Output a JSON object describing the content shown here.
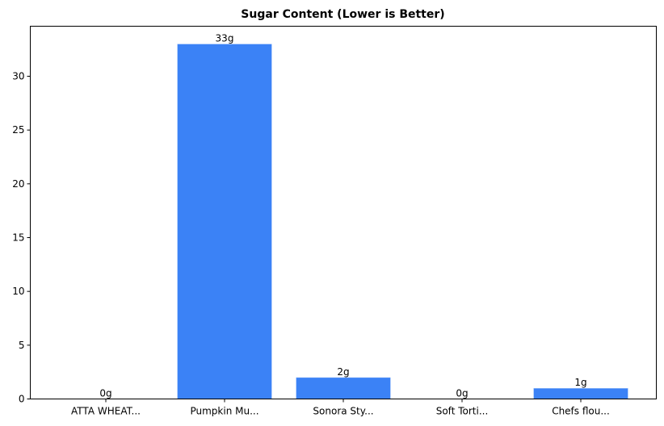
{
  "chart_data": {
    "type": "bar",
    "title": "Sugar Content (Lower is Better)",
    "xlabel": "",
    "ylabel": "",
    "categories": [
      "ATTA WHEAT...",
      "Pumpkin Mu...",
      "Sonora Sty...",
      "Soft Torti...",
      "Chefs flou..."
    ],
    "values": [
      0,
      33,
      2,
      0,
      1
    ],
    "value_labels": [
      "0g",
      "33g",
      "2g",
      "0g",
      "1g"
    ],
    "unit": "g",
    "ylim": [
      0,
      34.65
    ],
    "yticks": [
      0,
      5,
      10,
      15,
      20,
      25,
      30
    ],
    "grid": false,
    "legend": null,
    "bar_color": "#3b82f6"
  }
}
